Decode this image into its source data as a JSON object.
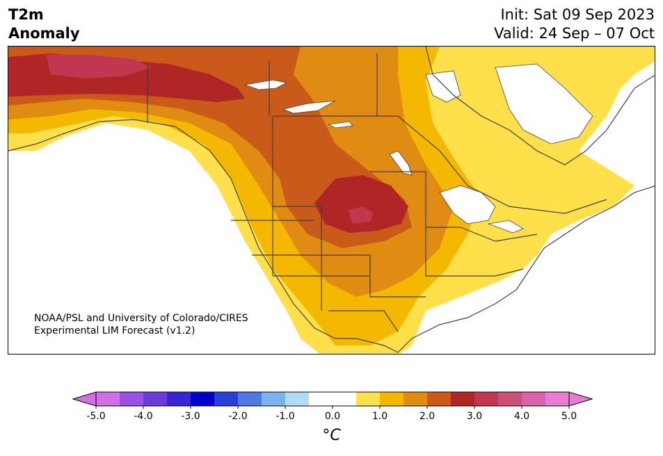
{
  "header": {
    "variable": "T2m",
    "subtitle": "Anomaly",
    "init": "Init: Sat 09 Sep 2023",
    "valid": "Valid: 24 Sep – 07 Oct"
  },
  "credit": {
    "line1": "NOAA/PSL and University of Colorado/CIRES",
    "line2": "Experimental LIM Forecast (v1.2)"
  },
  "colorbar": {
    "unit": "°C",
    "ticks": [
      "-5.0",
      "-4.0",
      "-3.0",
      "-2.0",
      "-1.0",
      "0.0",
      "1.0",
      "2.0",
      "3.0",
      "4.0",
      "5.0"
    ],
    "colors": [
      "#d36fe6",
      "#9a50e0",
      "#6a3ddb",
      "#3a22d6",
      "#0000cc",
      "#2a3fd9",
      "#4f78e3",
      "#78b3ee",
      "#b1dcf9",
      "#ffffff",
      "#ffffff",
      "#ffe04a",
      "#f5b800",
      "#e08c12",
      "#c95a1a",
      "#b02525",
      "#bf3850",
      "#cc4f78",
      "#da62a8",
      "#e77bd6"
    ],
    "min_color": "#d36fe6",
    "max_color": "#e77bd6"
  },
  "map": {
    "region": "North America",
    "land_color": "#ffffff",
    "water_color": "#ffffff",
    "border_color": "#404040"
  }
}
